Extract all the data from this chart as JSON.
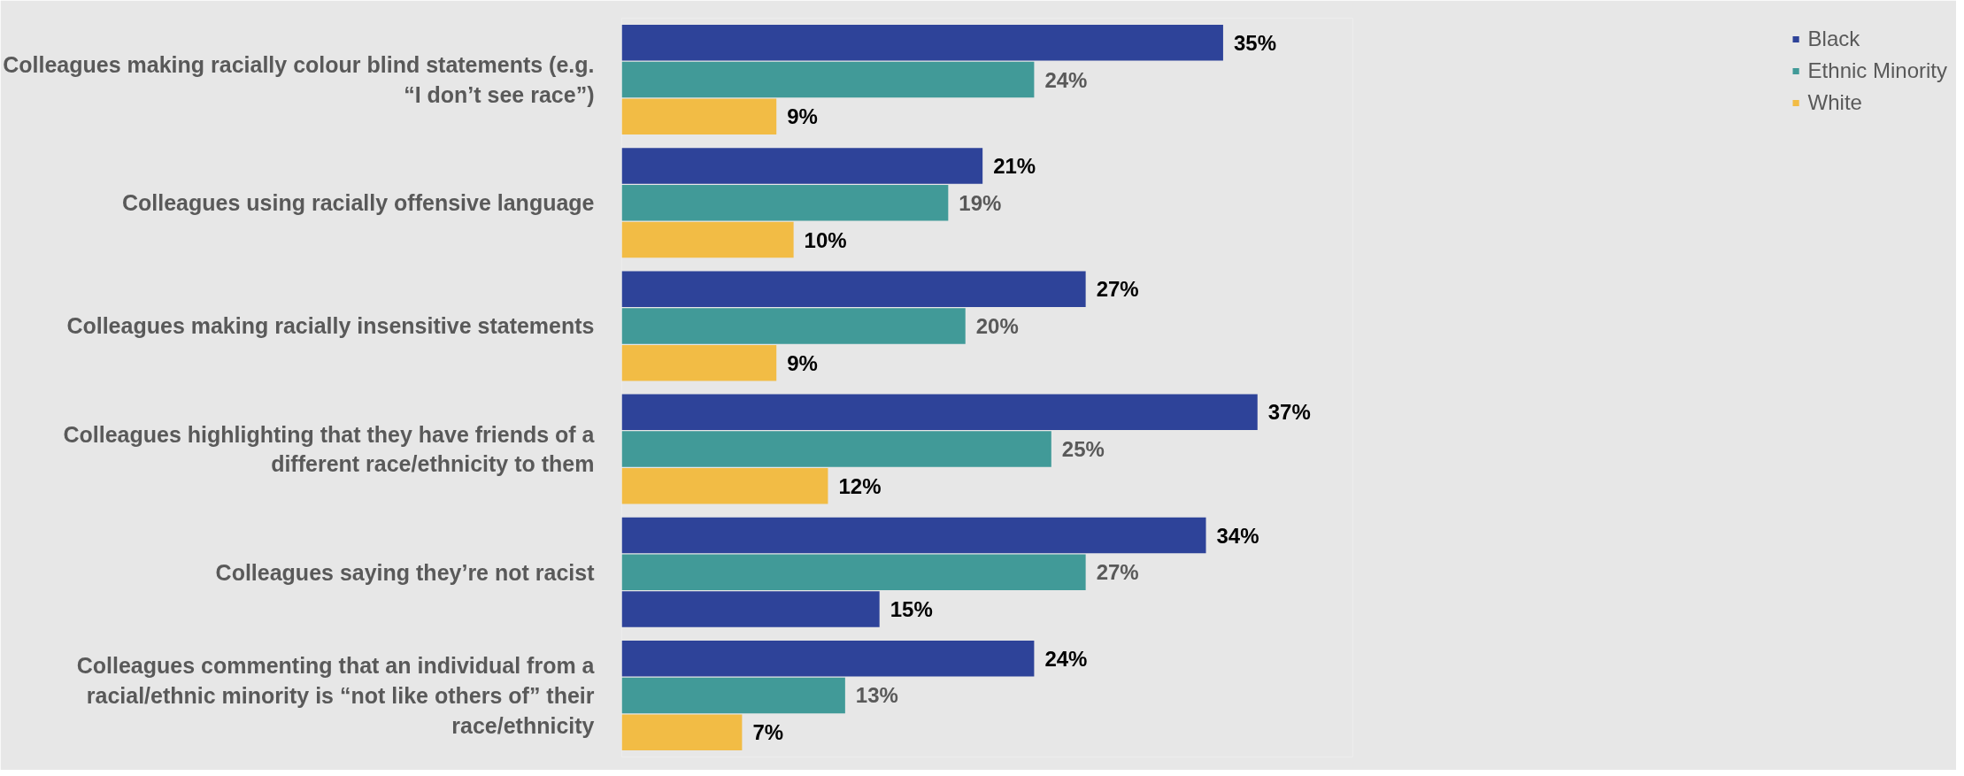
{
  "chart_data": {
    "type": "bar",
    "orientation": "horizontal",
    "categories": [
      "Colleagues making racially colour blind statements (e.g. “I don’t see race”)",
      "Colleagues using racially offensive language",
      "Colleagues making racially insensitive statements",
      "Colleagues highlighting that they have friends of a different race/ethnicity to them",
      "Colleagues saying they’re not racist",
      "Colleagues commenting that an individual from a racial/ethnic minority is “not like others of” their race/ethnicity"
    ],
    "series": [
      {
        "name": "Black",
        "color": "#2e4399",
        "values": [
          35,
          21,
          27,
          37,
          34,
          24
        ],
        "value_labels": [
          "35%",
          "21%",
          "27%",
          "37%",
          "34%",
          "24%"
        ]
      },
      {
        "name": "Ethnic Minority",
        "color": "#419a98",
        "values": [
          24,
          19,
          20,
          25,
          27,
          13
        ],
        "value_labels": [
          "24%",
          "19%",
          "20%",
          "25%",
          "27%",
          "13%"
        ]
      },
      {
        "name": "White",
        "color": "#f2bc45",
        "colors": [
          "#f2bc45",
          "#f2bc45",
          "#f2bc45",
          "#f2bc45",
          "#2e4399",
          "#f2bc45"
        ],
        "values": [
          9,
          10,
          9,
          12,
          15,
          7
        ],
        "value_labels": [
          "9%",
          "10%",
          "9%",
          "12%",
          "15%",
          "7%"
        ]
      }
    ],
    "legend": "top right"
  }
}
